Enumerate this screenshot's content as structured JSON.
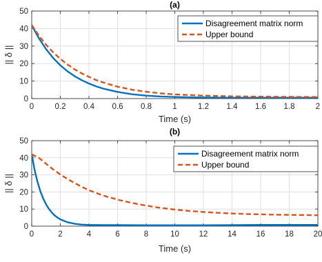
{
  "chart_data": [
    {
      "type": "line",
      "title": "(a)",
      "xlabel": "Time (s)",
      "ylabel": "|| δ ||",
      "xlim": [
        0,
        2
      ],
      "ylim": [
        0,
        50
      ],
      "xticks": [
        0,
        0.2,
        0.4,
        0.6,
        0.8,
        1,
        1.2,
        1.4,
        1.6,
        1.8,
        2
      ],
      "xtick_labels": [
        "0",
        "0.2",
        "0.4",
        "0.6",
        "0.8",
        "1",
        "1.2",
        "1.4",
        "1.6",
        "1.8",
        "2"
      ],
      "yticks": [
        0,
        10,
        20,
        30,
        40,
        50
      ],
      "ytick_labels": [
        "0",
        "10",
        "20",
        "30",
        "40",
        "50"
      ],
      "grid": true,
      "legend_position": "top-right",
      "series": [
        {
          "name": "Disagreement matrix norm",
          "color": "#0072BD",
          "style": "solid",
          "x": [
            0,
            0.05,
            0.1,
            0.15,
            0.2,
            0.25,
            0.3,
            0.35,
            0.4,
            0.45,
            0.5,
            0.6,
            0.7,
            0.8,
            0.9,
            1.0,
            1.2,
            1.4,
            1.6,
            1.8,
            2.0
          ],
          "y": [
            42,
            34.5,
            28.3,
            23.2,
            19.0,
            15.6,
            12.8,
            10.5,
            8.6,
            7.0,
            5.7,
            3.8,
            2.5,
            1.7,
            1.2,
            0.9,
            0.6,
            0.5,
            0.5,
            0.5,
            0.5
          ]
        },
        {
          "name": "Upper bound",
          "color": "#D95319",
          "style": "dashed",
          "x": [
            0,
            0.05,
            0.1,
            0.15,
            0.2,
            0.25,
            0.3,
            0.35,
            0.4,
            0.45,
            0.5,
            0.6,
            0.7,
            0.8,
            0.9,
            1.0,
            1.2,
            1.4,
            1.6,
            1.8,
            2.0
          ],
          "y": [
            42,
            36.0,
            30.8,
            26.4,
            22.7,
            19.5,
            16.7,
            14.4,
            12.4,
            10.6,
            9.2,
            6.8,
            5.1,
            3.9,
            3.0,
            2.4,
            1.7,
            1.3,
            1.1,
            1.0,
            0.9
          ]
        }
      ]
    },
    {
      "type": "line",
      "title": "(b)",
      "xlabel": "Time (s)",
      "ylabel": "|| δ ||",
      "xlim": [
        0,
        20
      ],
      "ylim": [
        0,
        50
      ],
      "xticks": [
        0,
        2,
        4,
        6,
        8,
        10,
        12,
        14,
        16,
        18,
        20
      ],
      "xtick_labels": [
        "0",
        "2",
        "4",
        "6",
        "8",
        "10",
        "12",
        "14",
        "16",
        "18",
        "20"
      ],
      "yticks": [
        0,
        10,
        20,
        30,
        40,
        50
      ],
      "ytick_labels": [
        "0",
        "10",
        "20",
        "30",
        "40",
        "50"
      ],
      "grid": true,
      "legend_position": "top-right",
      "series": [
        {
          "name": "Disagreement matrix norm",
          "color": "#0072BD",
          "style": "solid",
          "x": [
            0,
            0.2,
            0.4,
            0.6,
            0.8,
            1.0,
            1.2,
            1.4,
            1.6,
            1.8,
            2.0,
            2.5,
            3.0,
            3.5,
            4.0,
            5,
            6,
            8,
            10,
            12,
            14,
            16,
            18,
            20
          ],
          "y": [
            42,
            33.0,
            26.0,
            20.5,
            16.2,
            12.8,
            10.1,
            8.0,
            6.3,
            5.0,
            4.0,
            2.3,
            1.4,
            0.9,
            0.7,
            0.6,
            0.6,
            0.5,
            0.5,
            0.5,
            0.6,
            0.7,
            0.7,
            0.7
          ]
        },
        {
          "name": "Upper bound",
          "color": "#D95319",
          "style": "dashed",
          "x": [
            0,
            0.5,
            1,
            1.5,
            2,
            2.5,
            3,
            3.5,
            4,
            5,
            6,
            7,
            8,
            9,
            10,
            11,
            12,
            13,
            14,
            15,
            16,
            17,
            18,
            19,
            20
          ],
          "y": [
            42,
            40.0,
            36.5,
            33.2,
            30.2,
            27.6,
            25.2,
            23.0,
            21.0,
            17.9,
            15.5,
            13.6,
            12.0,
            10.7,
            9.7,
            8.9,
            8.3,
            7.8,
            7.4,
            7.1,
            6.9,
            6.7,
            6.6,
            6.5,
            6.4
          ]
        }
      ]
    }
  ]
}
